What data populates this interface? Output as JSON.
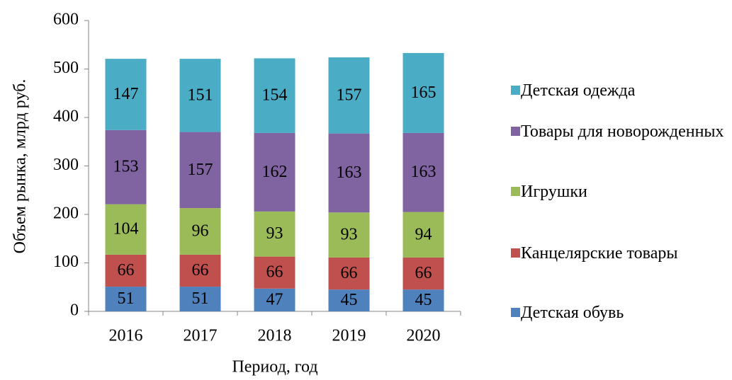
{
  "chart_data": {
    "type": "stacked_bar",
    "x_label": "Период, год",
    "y_label": "Объем рынка, млрд руб.",
    "categories": [
      "2016",
      "2017",
      "2018",
      "2019",
      "2020"
    ],
    "ylim": [
      0,
      600
    ],
    "yticks": [
      0,
      100,
      200,
      300,
      400,
      500,
      600
    ],
    "grid": false,
    "legend": "right",
    "series": [
      {
        "name": "Детская обувь",
        "color": "#4f81bd",
        "values": [
          51,
          51,
          47,
          45,
          45
        ]
      },
      {
        "name": "Канцелярские товары",
        "color": "#c0504d",
        "values": [
          66,
          66,
          66,
          66,
          66
        ]
      },
      {
        "name": "Игрушки",
        "color": "#9bbb59",
        "values": [
          104,
          96,
          93,
          93,
          94
        ]
      },
      {
        "name": "Товары для новорожденных",
        "color": "#8064a2",
        "values": [
          153,
          157,
          162,
          163,
          163
        ]
      },
      {
        "name": "Детская одежда",
        "color": "#4bacc6",
        "values": [
          147,
          151,
          154,
          157,
          165
        ]
      }
    ]
  }
}
